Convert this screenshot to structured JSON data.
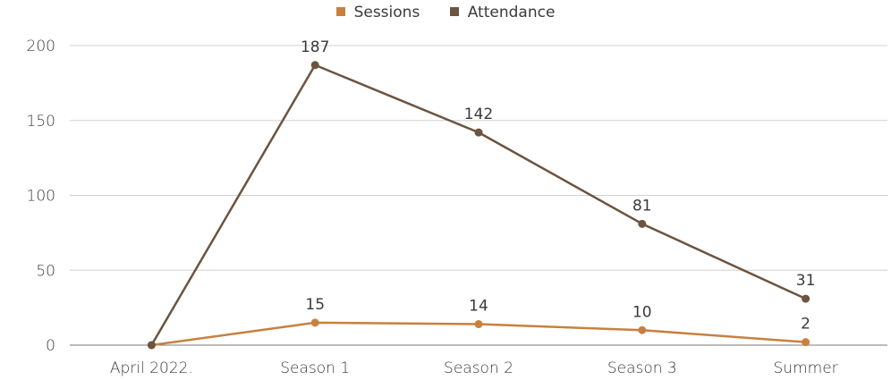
{
  "chart_data": {
    "type": "line",
    "title": "",
    "xlabel": "",
    "ylabel": "",
    "categories": [
      "April 2022.",
      "Season 1",
      "Season 2",
      "Season 3",
      "Summer"
    ],
    "ylim": [
      0,
      200
    ],
    "yticks": [
      0,
      50,
      100,
      150,
      200
    ],
    "grid": true,
    "legend_position": "top",
    "series": [
      {
        "name": "Sessions",
        "color": "#c8803f",
        "values": [
          0,
          15,
          14,
          10,
          2
        ],
        "labels": [
          "",
          "15",
          "14",
          "10",
          "2"
        ]
      },
      {
        "name": "Attendance",
        "color": "#6b5440",
        "values": [
          0,
          187,
          142,
          81,
          31
        ],
        "labels": [
          "",
          "187",
          "142",
          "81",
          "31"
        ]
      }
    ]
  }
}
